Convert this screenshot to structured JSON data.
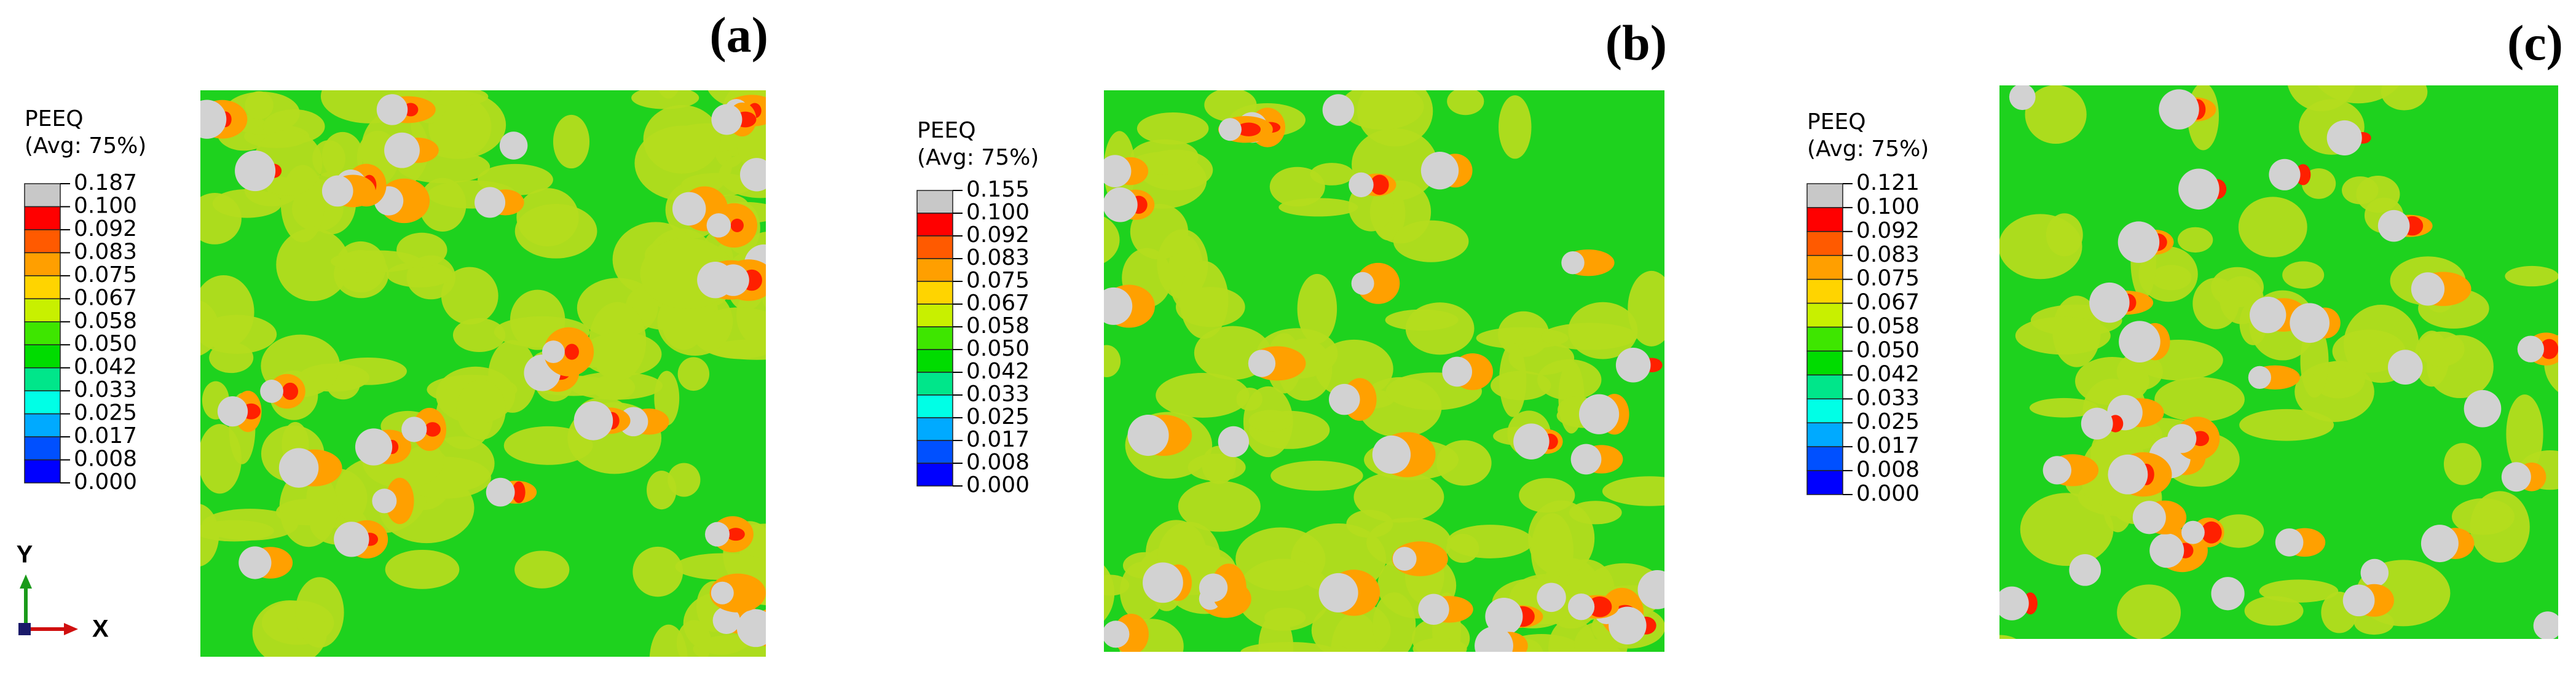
{
  "panels": [
    {
      "label": "(a)",
      "legend": {
        "title": "PEEQ",
        "subtitle": "(Avg: 75%)",
        "values": [
          "0.187",
          "0.100",
          "0.092",
          "0.083",
          "0.075",
          "0.067",
          "0.058",
          "0.050",
          "0.042",
          "0.033",
          "0.025",
          "0.017",
          "0.008",
          "0.000"
        ]
      }
    },
    {
      "label": "(b)",
      "legend": {
        "title": "PEEQ",
        "subtitle": "(Avg: 75%)",
        "values": [
          "0.155",
          "0.100",
          "0.092",
          "0.083",
          "0.075",
          "0.067",
          "0.058",
          "0.050",
          "0.042",
          "0.033",
          "0.025",
          "0.017",
          "0.008",
          "0.000"
        ]
      }
    },
    {
      "label": "(c)",
      "legend": {
        "title": "PEEQ",
        "subtitle": "(Avg: 75%)",
        "values": [
          "0.121",
          "0.100",
          "0.092",
          "0.083",
          "0.075",
          "0.067",
          "0.058",
          "0.050",
          "0.042",
          "0.033",
          "0.025",
          "0.017",
          "0.008",
          "0.000"
        ]
      }
    }
  ],
  "triad": {
    "y": "Y",
    "x": "X"
  }
}
